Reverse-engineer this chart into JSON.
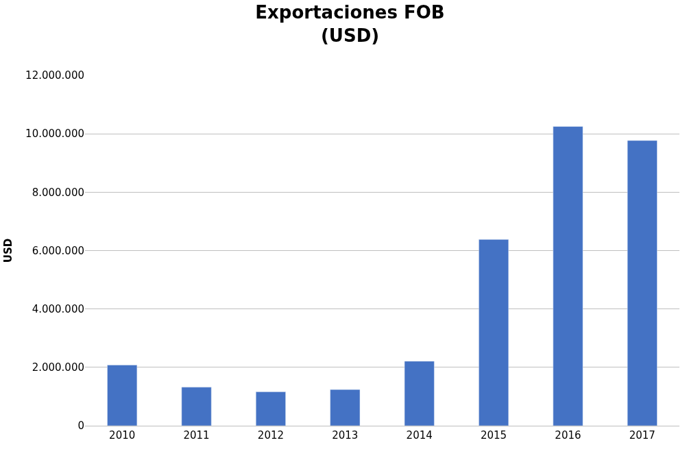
{
  "chart_data": {
    "type": "bar",
    "title": "Exportaciones FOB\n(USD)",
    "ylabel": "USD",
    "categories": [
      "2010",
      "2011",
      "2012",
      "2013",
      "2014",
      "2015",
      "2016",
      "2017"
    ],
    "values": [
      2080000,
      1320000,
      1160000,
      1240000,
      2210000,
      6380000,
      10250000,
      9770000
    ],
    "color": "#4472c4",
    "ylim": [
      0,
      12000000
    ],
    "yticks": [
      0,
      {
        "value": 2000000,
        "label": "2.000.000"
      },
      {
        "value": 4000000,
        "label": "4.000.000"
      },
      {
        "value": 6000000,
        "label": "6.000.000"
      },
      {
        "value": 8000000,
        "label": "8.000.000"
      },
      {
        "value": 10000000,
        "label": "10.000.000"
      },
      {
        "value": 12000000,
        "label": "12.000.000"
      }
    ],
    "grid": "y",
    "legend": false
  }
}
